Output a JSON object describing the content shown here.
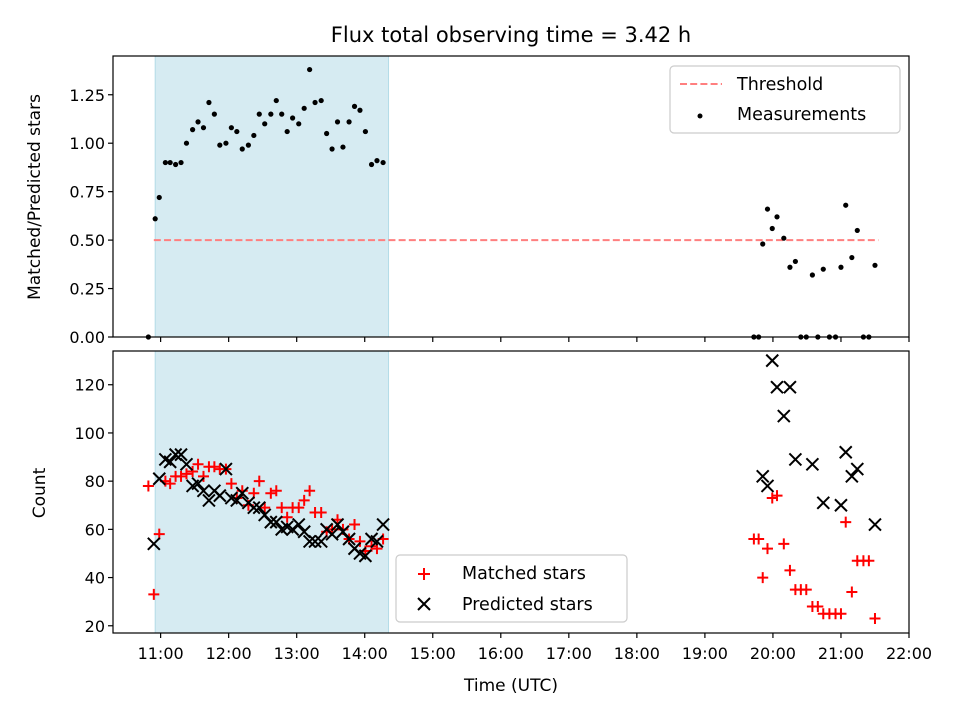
{
  "title": "Flux total observing time = 3.42 h",
  "xlabel": "Time (UTC)",
  "colors": {
    "shade": "#add8e6",
    "threshold": "#ff7f7f",
    "measure": "#000000",
    "matched": "#ff0000",
    "predicted": "#000000"
  },
  "chart_data": [
    {
      "type": "scatter",
      "ylabel": "Matched/Predicted stars",
      "xlim": [
        10.3,
        22.0
      ],
      "ylim": [
        0,
        1.45
      ],
      "yticks": [
        0.0,
        0.25,
        0.5,
        0.75,
        1.0,
        1.25
      ],
      "ytick_labels": [
        "0.00",
        "0.25",
        "0.50",
        "0.75",
        "1.00",
        "1.25"
      ],
      "shaded_span": [
        10.92,
        14.35
      ],
      "legend_position": "top-right",
      "threshold": {
        "name": "Threshold",
        "y": 0.5,
        "x": [
          10.9,
          21.55
        ]
      },
      "series": [
        {
          "name": "Measurements",
          "points": [
            [
              10.82,
              0.0
            ],
            [
              10.92,
              0.61
            ],
            [
              10.98,
              0.72
            ],
            [
              11.07,
              0.9
            ],
            [
              11.14,
              0.9
            ],
            [
              11.22,
              0.89
            ],
            [
              11.3,
              0.9
            ],
            [
              11.38,
              1.0
            ],
            [
              11.47,
              1.07
            ],
            [
              11.55,
              1.11
            ],
            [
              11.63,
              1.08
            ],
            [
              11.71,
              1.21
            ],
            [
              11.79,
              1.15
            ],
            [
              11.87,
              0.99
            ],
            [
              11.96,
              1.0
            ],
            [
              12.04,
              1.08
            ],
            [
              12.12,
              1.06
            ],
            [
              12.2,
              0.97
            ],
            [
              12.29,
              0.99
            ],
            [
              12.37,
              1.04
            ],
            [
              12.45,
              1.15
            ],
            [
              12.53,
              1.1
            ],
            [
              12.62,
              1.15
            ],
            [
              12.7,
              1.22
            ],
            [
              12.78,
              1.15
            ],
            [
              12.86,
              1.06
            ],
            [
              12.94,
              1.13
            ],
            [
              13.03,
              1.1
            ],
            [
              13.11,
              1.18
            ],
            [
              13.19,
              1.38
            ],
            [
              13.27,
              1.21
            ],
            [
              13.36,
              1.22
            ],
            [
              13.44,
              1.05
            ],
            [
              13.52,
              0.97
            ],
            [
              13.6,
              1.11
            ],
            [
              13.68,
              0.98
            ],
            [
              13.77,
              1.11
            ],
            [
              13.85,
              1.19
            ],
            [
              13.93,
              1.17
            ],
            [
              14.01,
              1.06
            ],
            [
              14.1,
              0.89
            ],
            [
              14.18,
              0.91
            ],
            [
              14.27,
              0.9
            ],
            [
              19.72,
              0.0
            ],
            [
              19.79,
              0.0
            ],
            [
              19.85,
              0.48
            ],
            [
              19.92,
              0.66
            ],
            [
              19.99,
              0.56
            ],
            [
              20.06,
              0.62
            ],
            [
              20.16,
              0.51
            ],
            [
              20.25,
              0.36
            ],
            [
              20.33,
              0.39
            ],
            [
              20.41,
              0.0
            ],
            [
              20.49,
              0.0
            ],
            [
              20.58,
              0.32
            ],
            [
              20.66,
              0.0
            ],
            [
              20.74,
              0.35
            ],
            [
              20.83,
              0.0
            ],
            [
              20.92,
              0.0
            ],
            [
              21.0,
              0.36
            ],
            [
              21.07,
              0.68
            ],
            [
              21.16,
              0.41
            ],
            [
              21.24,
              0.55
            ],
            [
              21.33,
              0.0
            ],
            [
              21.41,
              0.0
            ],
            [
              21.5,
              0.37
            ]
          ]
        }
      ]
    },
    {
      "type": "scatter",
      "ylabel": "Count",
      "xlim": [
        10.3,
        22.0
      ],
      "ylim": [
        17,
        134
      ],
      "yticks": [
        20,
        40,
        60,
        80,
        100,
        120
      ],
      "ytick_labels": [
        "20",
        "40",
        "60",
        "80",
        "100",
        "120"
      ],
      "xticks": [
        11,
        12,
        13,
        14,
        15,
        16,
        17,
        18,
        19,
        20,
        21,
        22
      ],
      "xtick_labels": [
        "11:00",
        "12:00",
        "13:00",
        "14:00",
        "15:00",
        "16:00",
        "17:00",
        "18:00",
        "19:00",
        "20:00",
        "21:00",
        "22:00"
      ],
      "shaded_span": [
        10.92,
        14.35
      ],
      "legend_position": "lower-center",
      "series": [
        {
          "name": "Matched stars",
          "marker": "plus",
          "points": [
            [
              10.82,
              78
            ],
            [
              10.9,
              33
            ],
            [
              10.98,
              58
            ],
            [
              11.07,
              80
            ],
            [
              11.14,
              79
            ],
            [
              11.22,
              82
            ],
            [
              11.3,
              82
            ],
            [
              11.38,
              83
            ],
            [
              11.47,
              84
            ],
            [
              11.55,
              87
            ],
            [
              11.63,
              82
            ],
            [
              11.71,
              86
            ],
            [
              11.79,
              86
            ],
            [
              11.87,
              85
            ],
            [
              11.96,
              85
            ],
            [
              12.04,
              79
            ],
            [
              12.12,
              73
            ],
            [
              12.2,
              76
            ],
            [
              12.29,
              70
            ],
            [
              12.37,
              75
            ],
            [
              12.45,
              80
            ],
            [
              12.53,
              69
            ],
            [
              12.62,
              75
            ],
            [
              12.7,
              76
            ],
            [
              12.78,
              69
            ],
            [
              12.86,
              65
            ],
            [
              12.94,
              69
            ],
            [
              13.03,
              69
            ],
            [
              13.11,
              72
            ],
            [
              13.19,
              76
            ],
            [
              13.27,
              67
            ],
            [
              13.36,
              67
            ],
            [
              13.44,
              59
            ],
            [
              13.52,
              60
            ],
            [
              13.6,
              64
            ],
            [
              13.68,
              60
            ],
            [
              13.77,
              56
            ],
            [
              13.85,
              62
            ],
            [
              13.93,
              55
            ],
            [
              14.01,
              51
            ],
            [
              14.1,
              53
            ],
            [
              14.18,
              52
            ],
            [
              14.27,
              56
            ],
            [
              19.72,
              56
            ],
            [
              19.79,
              56
            ],
            [
              19.85,
              40
            ],
            [
              19.92,
              52
            ],
            [
              19.99,
              73
            ],
            [
              20.06,
              74
            ],
            [
              20.16,
              54
            ],
            [
              20.25,
              43
            ],
            [
              20.33,
              35
            ],
            [
              20.41,
              35
            ],
            [
              20.49,
              35
            ],
            [
              20.58,
              28
            ],
            [
              20.66,
              28
            ],
            [
              20.74,
              25
            ],
            [
              20.83,
              25
            ],
            [
              20.92,
              25
            ],
            [
              21.0,
              25
            ],
            [
              21.07,
              63
            ],
            [
              21.16,
              34
            ],
            [
              21.24,
              47
            ],
            [
              21.33,
              47
            ],
            [
              21.41,
              47
            ],
            [
              21.5,
              23
            ]
          ]
        },
        {
          "name": "Predicted stars",
          "marker": "x",
          "points": [
            [
              10.9,
              54
            ],
            [
              10.98,
              81
            ],
            [
              11.07,
              89
            ],
            [
              11.14,
              88
            ],
            [
              11.22,
              91
            ],
            [
              11.3,
              91
            ],
            [
              11.38,
              87
            ],
            [
              11.47,
              78
            ],
            [
              11.55,
              79
            ],
            [
              11.63,
              76
            ],
            [
              11.71,
              72
            ],
            [
              11.79,
              76
            ],
            [
              11.87,
              74
            ],
            [
              11.96,
              85
            ],
            [
              12.04,
              73
            ],
            [
              12.12,
              72
            ],
            [
              12.2,
              75
            ],
            [
              12.29,
              71
            ],
            [
              12.37,
              69
            ],
            [
              12.45,
              69
            ],
            [
              12.53,
              66
            ],
            [
              12.62,
              63
            ],
            [
              12.7,
              63
            ],
            [
              12.78,
              60
            ],
            [
              12.86,
              61
            ],
            [
              12.94,
              60
            ],
            [
              13.03,
              62
            ],
            [
              13.11,
              59
            ],
            [
              13.19,
              55
            ],
            [
              13.27,
              55
            ],
            [
              13.36,
              55
            ],
            [
              13.44,
              60
            ],
            [
              13.52,
              58
            ],
            [
              13.6,
              62
            ],
            [
              13.68,
              59
            ],
            [
              13.77,
              56
            ],
            [
              13.85,
              52
            ],
            [
              13.93,
              50
            ],
            [
              14.01,
              49
            ],
            [
              14.1,
              56
            ],
            [
              14.18,
              55
            ],
            [
              14.27,
              62
            ],
            [
              19.85,
              82
            ],
            [
              19.92,
              78
            ],
            [
              19.99,
              130
            ],
            [
              20.06,
              119
            ],
            [
              20.16,
              107
            ],
            [
              20.25,
              119
            ],
            [
              20.33,
              89
            ],
            [
              20.58,
              87
            ],
            [
              20.74,
              71
            ],
            [
              21.0,
              70
            ],
            [
              21.07,
              92
            ],
            [
              21.16,
              82
            ],
            [
              21.24,
              85
            ],
            [
              21.5,
              62
            ]
          ]
        }
      ]
    }
  ]
}
